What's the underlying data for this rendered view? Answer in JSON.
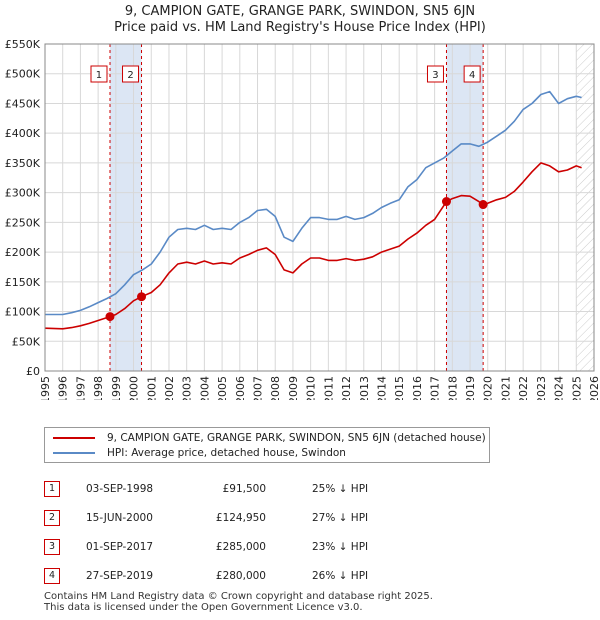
{
  "title_line1": "9, CAMPION GATE, GRANGE PARK, SWINDON, SN5 6JN",
  "title_line2": "Price paid vs. HM Land Registry's House Price Index (HPI)",
  "colors": {
    "price_paid": "#cc0000",
    "hpi": "#5a8ac6",
    "shade": "#dce6f4"
  },
  "legend": {
    "price_paid_label": "9, CAMPION GATE, GRANGE PARK, SWINDON, SN5 6JN (detached house)",
    "hpi_label": "HPI: Average price, detached house, Swindon"
  },
  "sales": [
    {
      "num": "1",
      "date": "03-SEP-1998",
      "price": "£91,500",
      "hpi_diff": "25% ↓ HPI"
    },
    {
      "num": "2",
      "date": "15-JUN-2000",
      "price": "£124,950",
      "hpi_diff": "27% ↓ HPI"
    },
    {
      "num": "3",
      "date": "01-SEP-2017",
      "price": "£285,000",
      "hpi_diff": "23% ↓ HPI"
    },
    {
      "num": "4",
      "date": "27-SEP-2019",
      "price": "£280,000",
      "hpi_diff": "26% ↓ HPI"
    }
  ],
  "footer_line1": "Contains HM Land Registry data © Crown copyright and database right 2025.",
  "footer_line2": "This data is licensed under the Open Government Licence v3.0.",
  "chart_data": {
    "type": "line",
    "title": "9, CAMPION GATE, GRANGE PARK, SWINDON, SN5 6JN — Price paid vs. HM Land Registry's House Price Index (HPI)",
    "xlabel": "",
    "ylabel": "",
    "xlim": [
      1995,
      2026
    ],
    "ylim": [
      0,
      550000
    ],
    "x_ticks": [
      1995,
      1996,
      1997,
      1998,
      1999,
      2000,
      2001,
      2002,
      2003,
      2004,
      2005,
      2006,
      2007,
      2008,
      2009,
      2010,
      2011,
      2012,
      2013,
      2014,
      2015,
      2016,
      2017,
      2018,
      2019,
      2020,
      2021,
      2022,
      2023,
      2024,
      2025,
      2026
    ],
    "y_ticks": [
      {
        "value": 0,
        "label": "£0"
      },
      {
        "value": 50000,
        "label": "£50K"
      },
      {
        "value": 100000,
        "label": "£100K"
      },
      {
        "value": 150000,
        "label": "£150K"
      },
      {
        "value": 200000,
        "label": "£200K"
      },
      {
        "value": 250000,
        "label": "£250K"
      },
      {
        "value": 300000,
        "label": "£300K"
      },
      {
        "value": 350000,
        "label": "£350K"
      },
      {
        "value": 400000,
        "label": "£400K"
      },
      {
        "value": 450000,
        "label": "£450K"
      },
      {
        "value": 500000,
        "label": "£500K"
      },
      {
        "value": 550000,
        "label": "£550K"
      }
    ],
    "shaded_ranges": [
      [
        1998.67,
        2000.45
      ],
      [
        2017.67,
        2019.74
      ]
    ],
    "future_from": 2025.0,
    "sale_markers": [
      {
        "num": "1",
        "x": 1998.67,
        "y": 91500
      },
      {
        "num": "2",
        "x": 2000.45,
        "y": 124950
      },
      {
        "num": "3",
        "x": 2017.67,
        "y": 285000
      },
      {
        "num": "4",
        "x": 2019.74,
        "y": 280000
      }
    ],
    "series": [
      {
        "name": "HPI: Average price, detached house, Swindon",
        "color": "#5a8ac6",
        "x": [
          1995.0,
          1996.0,
          1996.5,
          1997.0,
          1997.5,
          1998.0,
          1998.5,
          1999.0,
          1999.5,
          2000.0,
          2000.5,
          2001.0,
          2001.5,
          2002.0,
          2002.5,
          2003.0,
          2003.5,
          2004.0,
          2004.5,
          2005.0,
          2005.5,
          2006.0,
          2006.5,
          2007.0,
          2007.5,
          2008.0,
          2008.5,
          2009.0,
          2009.5,
          2010.0,
          2010.5,
          2011.0,
          2011.5,
          2012.0,
          2012.5,
          2013.0,
          2013.5,
          2014.0,
          2014.5,
          2015.0,
          2015.5,
          2016.0,
          2016.5,
          2017.0,
          2017.5,
          2018.0,
          2018.5,
          2019.0,
          2019.5,
          2020.0,
          2020.5,
          2021.0,
          2021.5,
          2022.0,
          2022.5,
          2023.0,
          2023.5,
          2024.0,
          2024.5,
          2025.0,
          2025.3
        ],
        "y": [
          95000,
          95000,
          98000,
          102000,
          108000,
          115000,
          122000,
          130000,
          145000,
          162000,
          170000,
          180000,
          200000,
          225000,
          238000,
          240000,
          238000,
          245000,
          238000,
          240000,
          238000,
          250000,
          258000,
          270000,
          272000,
          260000,
          225000,
          218000,
          240000,
          258000,
          258000,
          255000,
          255000,
          260000,
          255000,
          258000,
          265000,
          275000,
          282000,
          288000,
          310000,
          322000,
          342000,
          350000,
          358000,
          370000,
          382000,
          382000,
          378000,
          385000,
          395000,
          405000,
          420000,
          440000,
          450000,
          465000,
          470000,
          450000,
          458000,
          462000,
          460000
        ]
      },
      {
        "name": "9, CAMPION GATE, GRANGE PARK, SWINDON, SN5 6JN (detached house)",
        "color": "#cc0000",
        "x": [
          1995.0,
          1996.0,
          1996.5,
          1997.0,
          1997.5,
          1998.0,
          1998.67,
          1999.0,
          1999.5,
          2000.0,
          2000.45,
          2001.0,
          2001.5,
          2002.0,
          2002.5,
          2003.0,
          2003.5,
          2004.0,
          2004.5,
          2005.0,
          2005.5,
          2006.0,
          2006.5,
          2007.0,
          2007.5,
          2008.0,
          2008.5,
          2009.0,
          2009.5,
          2010.0,
          2010.5,
          2011.0,
          2011.5,
          2012.0,
          2012.5,
          2013.0,
          2013.5,
          2014.0,
          2014.5,
          2015.0,
          2015.5,
          2016.0,
          2016.5,
          2017.0,
          2017.67,
          2018.0,
          2018.5,
          2019.0,
          2019.5,
          2019.74,
          2020.0,
          2020.5,
          2021.0,
          2021.5,
          2022.0,
          2022.5,
          2023.0,
          2023.5,
          2024.0,
          2024.5,
          2025.0,
          2025.3
        ],
        "y": [
          72000,
          71000,
          73000,
          76000,
          80000,
          85000,
          91500,
          95000,
          105000,
          118000,
          124950,
          132000,
          145000,
          165000,
          180000,
          183000,
          180000,
          185000,
          180000,
          182000,
          180000,
          190000,
          196000,
          203000,
          207000,
          196000,
          170000,
          165000,
          180000,
          190000,
          190000,
          186000,
          186000,
          189000,
          186000,
          188000,
          192000,
          200000,
          205000,
          210000,
          222000,
          232000,
          245000,
          255000,
          285000,
          290000,
          295000,
          294000,
          285000,
          280000,
          282000,
          288000,
          292000,
          302000,
          318000,
          335000,
          350000,
          345000,
          335000,
          338000,
          345000,
          342000
        ]
      }
    ]
  }
}
